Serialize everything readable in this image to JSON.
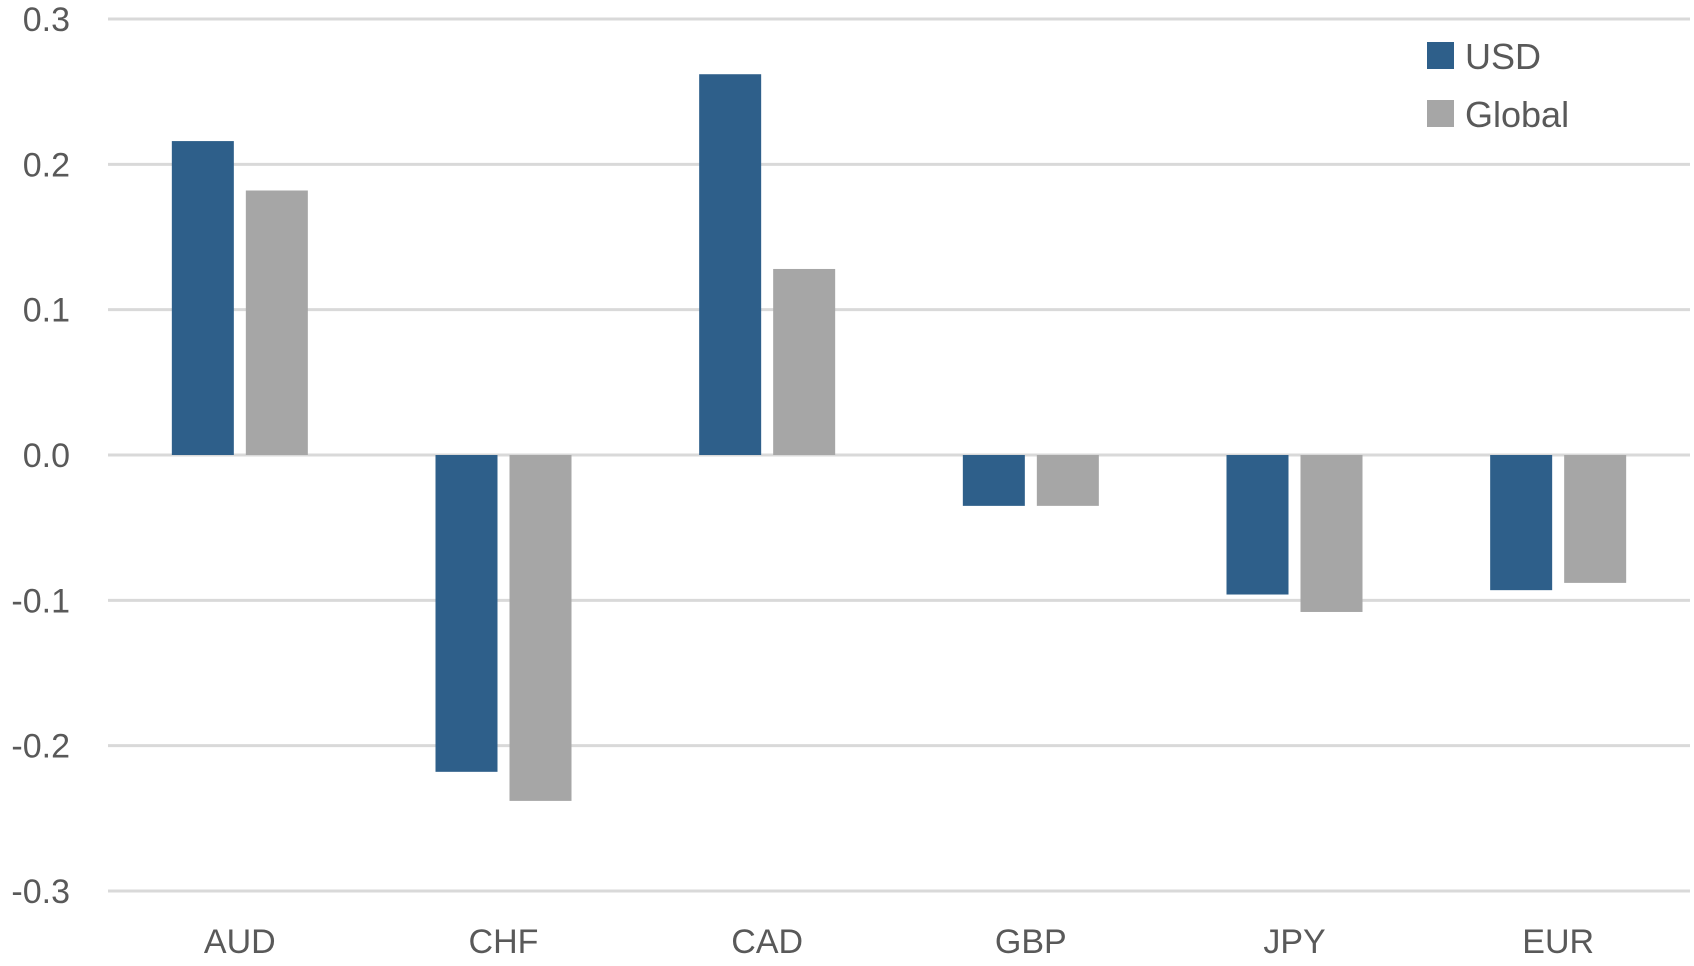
{
  "chart_data": {
    "type": "bar",
    "categories": [
      "AUD",
      "CHF",
      "CAD",
      "GBP",
      "JPY",
      "EUR"
    ],
    "series": [
      {
        "name": "USD",
        "values": [
          0.216,
          -0.218,
          0.262,
          -0.035,
          -0.096,
          -0.093
        ],
        "color": "#2e5f8a"
      },
      {
        "name": "Global",
        "values": [
          0.182,
          -0.238,
          0.128,
          -0.035,
          -0.108,
          -0.088
        ],
        "color": "#a6a6a6"
      }
    ],
    "ylim": [
      -0.3,
      0.3
    ],
    "yticks": [
      "0.3",
      "0.2",
      "0.1",
      "0.0",
      "-0.1",
      "-0.2",
      "-0.3"
    ],
    "grid": true,
    "legend_position": "top-right"
  }
}
